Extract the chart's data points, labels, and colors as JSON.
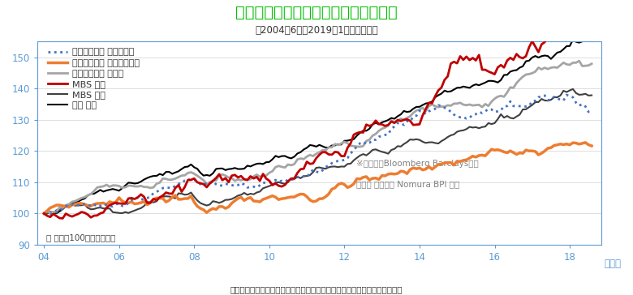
{
  "title": "各証券の円ヘッジ後のリターンの推移",
  "subtitle": "（2004年6月～2019年1月、月末値）",
  "footnote1": "※各証券はBloomberg Barclays指数",
  "footnote2": "　国債 日本のみ Nomura BPI 国債",
  "footnote3": "＊ 期初を100として指数化",
  "bottom_note": "（信頼できると判断したデータをもとに日興アセットマネジメントが作成）",
  "xlabel_nen": "（年）",
  "ylim": [
    90,
    155
  ],
  "yticks": [
    90,
    100,
    110,
    120,
    130,
    140,
    150
  ],
  "xticks": [
    0,
    24,
    48,
    72,
    96,
    120,
    144,
    168
  ],
  "xticklabels": [
    "04",
    "06",
    "08",
    "10",
    "12",
    "14",
    "16",
    "18"
  ],
  "title_color": "#00C000",
  "tick_color": "#5B9BD5",
  "axis_color": "#5B9BD5",
  "footnote_color": "#808080",
  "series": [
    {
      "label": "カバード債券 デンマーク",
      "color": "#4472C4",
      "linestyle": "dotted",
      "linewidth": 2.0,
      "zorder": 6
    },
    {
      "label": "カバード債券 スウェーデン",
      "color": "#ED7D31",
      "linestyle": "solid",
      "linewidth": 2.5,
      "zorder": 5
    },
    {
      "label": "カバード債券 ドイツ",
      "color": "#A5A5A5",
      "linestyle": "solid",
      "linewidth": 2.0,
      "zorder": 4
    },
    {
      "label": "MBS 米国",
      "color": "#C00000",
      "linestyle": "solid",
      "linewidth": 2.0,
      "zorder": 7
    },
    {
      "label": "MBS 日本",
      "color": "#404040",
      "linestyle": "solid",
      "linewidth": 1.5,
      "zorder": 3
    },
    {
      "label": "国債 日本",
      "color": "#000000",
      "linestyle": "solid",
      "linewidth": 1.5,
      "zorder": 2
    }
  ],
  "n_months": 176
}
